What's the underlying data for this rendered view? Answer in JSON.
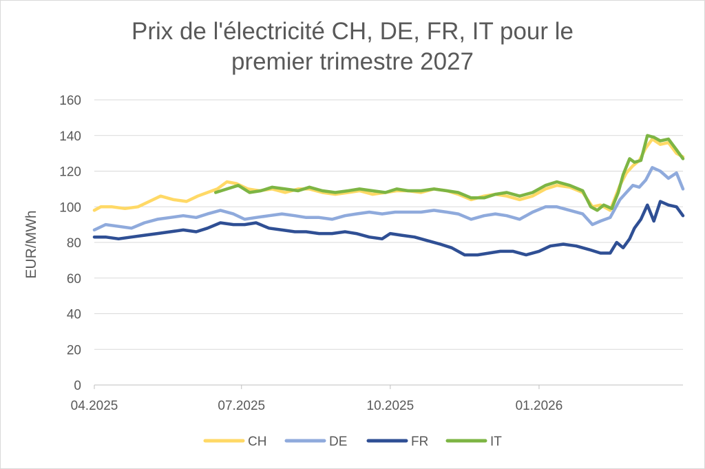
{
  "chart_data": {
    "type": "line",
    "title_line1": "Prix de l'électricité CH, DE, FR, IT pour le",
    "title_line2": "premier trimestre 2027",
    "ylabel": "EUR/MWh",
    "xlabel": "",
    "ylim": [
      0,
      160
    ],
    "yticks": [
      0,
      20,
      40,
      60,
      80,
      100,
      120,
      140,
      160
    ],
    "xlim": [
      "2025-04-01",
      "2026-03-31"
    ],
    "xticks": [
      {
        "date": "2025-04-01",
        "label": "04.2025"
      },
      {
        "date": "2025-07-01",
        "label": "07.2025"
      },
      {
        "date": "2025-10-01",
        "label": "10.2025"
      },
      {
        "date": "2026-01-01",
        "label": "01.2026"
      }
    ],
    "grid": "horizontal",
    "legend": "bottom",
    "series": [
      {
        "name": "CH",
        "color": "#ffd966",
        "points": [
          [
            "2025-04-01",
            98
          ],
          [
            "2025-04-05",
            100
          ],
          [
            "2025-04-12",
            100
          ],
          [
            "2025-04-20",
            99
          ],
          [
            "2025-04-28",
            100
          ],
          [
            "2025-05-05",
            103
          ],
          [
            "2025-05-12",
            106
          ],
          [
            "2025-05-20",
            104
          ],
          [
            "2025-05-28",
            103
          ],
          [
            "2025-06-04",
            106
          ],
          [
            "2025-06-10",
            108
          ],
          [
            "2025-06-16",
            110
          ],
          [
            "2025-06-22",
            114
          ],
          [
            "2025-06-28",
            113
          ],
          [
            "2025-07-05",
            110
          ],
          [
            "2025-07-12",
            109
          ],
          [
            "2025-07-20",
            110
          ],
          [
            "2025-07-28",
            108
          ],
          [
            "2025-08-05",
            110
          ],
          [
            "2025-08-12",
            110
          ],
          [
            "2025-08-20",
            108
          ],
          [
            "2025-08-28",
            107
          ],
          [
            "2025-09-05",
            108
          ],
          [
            "2025-09-12",
            109
          ],
          [
            "2025-09-20",
            107
          ],
          [
            "2025-09-28",
            108
          ],
          [
            "2025-10-05",
            109
          ],
          [
            "2025-10-12",
            109
          ],
          [
            "2025-10-20",
            108
          ],
          [
            "2025-10-28",
            110
          ],
          [
            "2025-11-05",
            109
          ],
          [
            "2025-11-12",
            107
          ],
          [
            "2025-11-20",
            104
          ],
          [
            "2025-11-28",
            106
          ],
          [
            "2025-12-05",
            107
          ],
          [
            "2025-12-12",
            106
          ],
          [
            "2025-12-20",
            104
          ],
          [
            "2025-12-28",
            106
          ],
          [
            "2026-01-05",
            110
          ],
          [
            "2026-01-12",
            112
          ],
          [
            "2026-01-20",
            111
          ],
          [
            "2026-01-28",
            108
          ],
          [
            "2026-02-03",
            100
          ],
          [
            "2026-02-08",
            101
          ],
          [
            "2026-02-14",
            98
          ],
          [
            "2026-02-20",
            112
          ],
          [
            "2026-02-24",
            119
          ],
          [
            "2026-02-28",
            123
          ],
          [
            "2026-03-04",
            126
          ],
          [
            "2026-03-08",
            133
          ],
          [
            "2026-03-12",
            138
          ],
          [
            "2026-03-17",
            135
          ],
          [
            "2026-03-22",
            136
          ],
          [
            "2026-03-27",
            130
          ],
          [
            "2026-03-31",
            128
          ]
        ]
      },
      {
        "name": "DE",
        "color": "#8faadc",
        "points": [
          [
            "2025-04-01",
            87
          ],
          [
            "2025-04-08",
            90
          ],
          [
            "2025-04-16",
            89
          ],
          [
            "2025-04-24",
            88
          ],
          [
            "2025-05-02",
            91
          ],
          [
            "2025-05-10",
            93
          ],
          [
            "2025-05-18",
            94
          ],
          [
            "2025-05-26",
            95
          ],
          [
            "2025-06-03",
            94
          ],
          [
            "2025-06-10",
            96
          ],
          [
            "2025-06-18",
            98
          ],
          [
            "2025-06-26",
            96
          ],
          [
            "2025-07-03",
            93
          ],
          [
            "2025-07-10",
            94
          ],
          [
            "2025-07-18",
            95
          ],
          [
            "2025-07-26",
            96
          ],
          [
            "2025-08-03",
            95
          ],
          [
            "2025-08-10",
            94
          ],
          [
            "2025-08-18",
            94
          ],
          [
            "2025-08-26",
            93
          ],
          [
            "2025-09-03",
            95
          ],
          [
            "2025-09-10",
            96
          ],
          [
            "2025-09-18",
            97
          ],
          [
            "2025-09-26",
            96
          ],
          [
            "2025-10-04",
            97
          ],
          [
            "2025-10-12",
            97
          ],
          [
            "2025-10-20",
            97
          ],
          [
            "2025-10-28",
            98
          ],
          [
            "2025-11-05",
            97
          ],
          [
            "2025-11-12",
            96
          ],
          [
            "2025-11-20",
            93
          ],
          [
            "2025-11-28",
            95
          ],
          [
            "2025-12-05",
            96
          ],
          [
            "2025-12-12",
            95
          ],
          [
            "2025-12-20",
            93
          ],
          [
            "2025-12-28",
            97
          ],
          [
            "2026-01-05",
            100
          ],
          [
            "2026-01-12",
            100
          ],
          [
            "2026-01-20",
            98
          ],
          [
            "2026-01-28",
            96
          ],
          [
            "2026-02-03",
            90
          ],
          [
            "2026-02-08",
            92
          ],
          [
            "2026-02-14",
            94
          ],
          [
            "2026-02-20",
            104
          ],
          [
            "2026-02-24",
            108
          ],
          [
            "2026-02-28",
            112
          ],
          [
            "2026-03-04",
            111
          ],
          [
            "2026-03-08",
            115
          ],
          [
            "2026-03-12",
            122
          ],
          [
            "2026-03-17",
            120
          ],
          [
            "2026-03-22",
            116
          ],
          [
            "2026-03-27",
            119
          ],
          [
            "2026-03-31",
            110
          ]
        ]
      },
      {
        "name": "FR",
        "color": "#2f4f94",
        "points": [
          [
            "2025-04-01",
            83
          ],
          [
            "2025-04-08",
            83
          ],
          [
            "2025-04-16",
            82
          ],
          [
            "2025-04-24",
            83
          ],
          [
            "2025-05-02",
            84
          ],
          [
            "2025-05-10",
            85
          ],
          [
            "2025-05-18",
            86
          ],
          [
            "2025-05-26",
            87
          ],
          [
            "2025-06-03",
            86
          ],
          [
            "2025-06-10",
            88
          ],
          [
            "2025-06-18",
            91
          ],
          [
            "2025-06-26",
            90
          ],
          [
            "2025-07-03",
            90
          ],
          [
            "2025-07-10",
            91
          ],
          [
            "2025-07-18",
            88
          ],
          [
            "2025-07-26",
            87
          ],
          [
            "2025-08-03",
            86
          ],
          [
            "2025-08-10",
            86
          ],
          [
            "2025-08-18",
            85
          ],
          [
            "2025-08-26",
            85
          ],
          [
            "2025-09-03",
            86
          ],
          [
            "2025-09-10",
            85
          ],
          [
            "2025-09-18",
            83
          ],
          [
            "2025-09-26",
            82
          ],
          [
            "2025-10-01",
            85
          ],
          [
            "2025-10-08",
            84
          ],
          [
            "2025-10-16",
            83
          ],
          [
            "2025-10-24",
            81
          ],
          [
            "2025-11-01",
            79
          ],
          [
            "2025-11-08",
            77
          ],
          [
            "2025-11-16",
            73
          ],
          [
            "2025-11-24",
            73
          ],
          [
            "2025-12-01",
            74
          ],
          [
            "2025-12-08",
            75
          ],
          [
            "2025-12-16",
            75
          ],
          [
            "2025-12-24",
            73
          ],
          [
            "2026-01-01",
            75
          ],
          [
            "2026-01-08",
            78
          ],
          [
            "2026-01-16",
            79
          ],
          [
            "2026-01-24",
            78
          ],
          [
            "2026-02-01",
            76
          ],
          [
            "2026-02-08",
            74
          ],
          [
            "2026-02-14",
            74
          ],
          [
            "2026-02-18",
            80
          ],
          [
            "2026-02-22",
            77
          ],
          [
            "2026-02-26",
            82
          ],
          [
            "2026-03-01",
            88
          ],
          [
            "2026-03-05",
            93
          ],
          [
            "2026-03-09",
            101
          ],
          [
            "2026-03-13",
            92
          ],
          [
            "2026-03-17",
            103
          ],
          [
            "2026-03-22",
            101
          ],
          [
            "2026-03-27",
            100
          ],
          [
            "2026-03-31",
            95
          ]
        ]
      },
      {
        "name": "IT",
        "color": "#7db544",
        "points": [
          [
            "2025-06-15",
            108
          ],
          [
            "2025-06-22",
            110
          ],
          [
            "2025-06-29",
            112
          ],
          [
            "2025-07-06",
            108
          ],
          [
            "2025-07-13",
            109
          ],
          [
            "2025-07-20",
            111
          ],
          [
            "2025-07-28",
            110
          ],
          [
            "2025-08-05",
            109
          ],
          [
            "2025-08-12",
            111
          ],
          [
            "2025-08-20",
            109
          ],
          [
            "2025-08-28",
            108
          ],
          [
            "2025-09-05",
            109
          ],
          [
            "2025-09-12",
            110
          ],
          [
            "2025-09-20",
            109
          ],
          [
            "2025-09-28",
            108
          ],
          [
            "2025-10-05",
            110
          ],
          [
            "2025-10-12",
            109
          ],
          [
            "2025-10-20",
            109
          ],
          [
            "2025-10-28",
            110
          ],
          [
            "2025-11-05",
            109
          ],
          [
            "2025-11-12",
            108
          ],
          [
            "2025-11-20",
            105
          ],
          [
            "2025-11-28",
            105
          ],
          [
            "2025-12-05",
            107
          ],
          [
            "2025-12-12",
            108
          ],
          [
            "2025-12-20",
            106
          ],
          [
            "2025-12-28",
            108
          ],
          [
            "2026-01-05",
            112
          ],
          [
            "2026-01-12",
            114
          ],
          [
            "2026-01-20",
            112
          ],
          [
            "2026-01-28",
            109
          ],
          [
            "2026-02-02",
            100
          ],
          [
            "2026-02-06",
            98
          ],
          [
            "2026-02-10",
            101
          ],
          [
            "2026-02-15",
            99
          ],
          [
            "2026-02-19",
            108
          ],
          [
            "2026-02-22",
            118
          ],
          [
            "2026-02-26",
            127
          ],
          [
            "2026-03-01",
            125
          ],
          [
            "2026-03-05",
            126
          ],
          [
            "2026-03-09",
            140
          ],
          [
            "2026-03-13",
            139
          ],
          [
            "2026-03-17",
            137
          ],
          [
            "2026-03-22",
            138
          ],
          [
            "2026-03-27",
            132
          ],
          [
            "2026-03-31",
            127
          ]
        ]
      }
    ]
  }
}
